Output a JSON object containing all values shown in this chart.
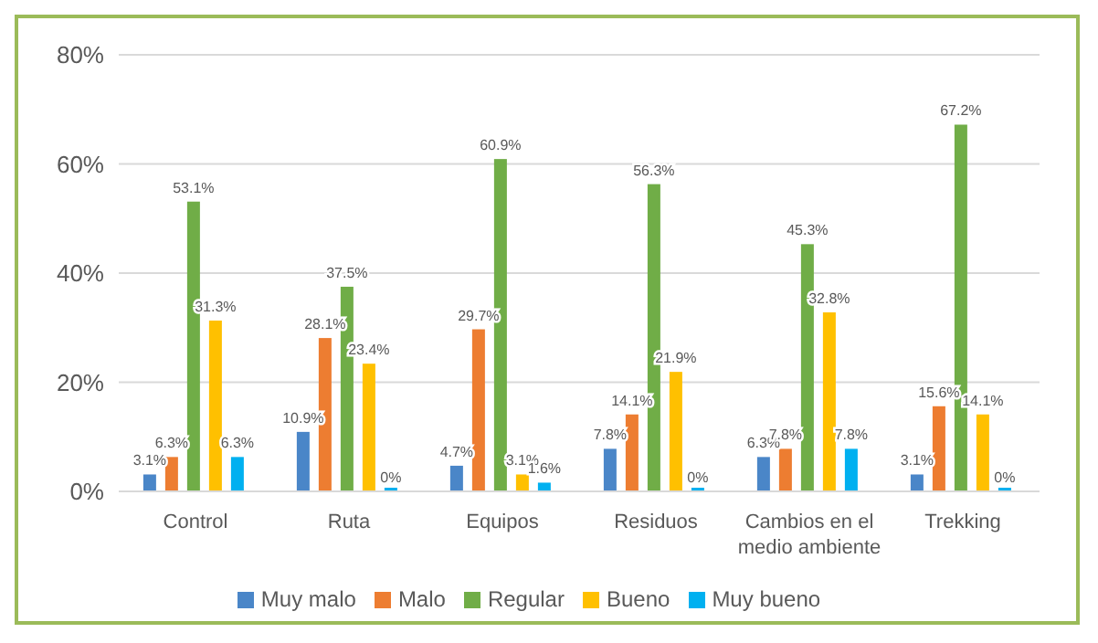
{
  "chart_data": {
    "type": "bar",
    "categories": [
      "Control",
      "Ruta",
      "Equipos",
      "Residuos",
      "Cambios en el medio ambiente",
      "Trekking"
    ],
    "series": [
      {
        "name": "Muy malo",
        "color": "#4a86c8",
        "values": [
          3.1,
          10.9,
          4.7,
          7.8,
          6.3,
          3.1
        ],
        "value_labels": [
          "3.1%",
          "10.9%",
          "4.7%",
          "7.8%",
          "6.3%",
          "3.1%"
        ]
      },
      {
        "name": "Malo",
        "color": "#ed7d31",
        "values": [
          6.3,
          28.1,
          29.7,
          14.1,
          7.8,
          15.6
        ],
        "value_labels": [
          "6.3%",
          "28.1%",
          "29.7%",
          "14.1%",
          "7.8%",
          "15.6%"
        ]
      },
      {
        "name": "Regular",
        "color": "#70ad47",
        "values": [
          53.1,
          37.5,
          60.9,
          56.3,
          45.3,
          67.2
        ],
        "value_labels": [
          "53.1%",
          "37.5%",
          "60.9%",
          "56.3%",
          "45.3%",
          "67.2%"
        ]
      },
      {
        "name": "Bueno",
        "color": "#ffc000",
        "values": [
          31.3,
          23.4,
          3.1,
          21.9,
          32.8,
          14.1
        ],
        "value_labels": [
          "31.3%",
          "23.4%",
          "3.1%",
          "21.9%",
          "32.8%",
          "14.1%"
        ]
      },
      {
        "name": "Muy bueno",
        "color": "#00b0f0",
        "values": [
          6.3,
          0,
          1.6,
          0,
          7.8,
          0
        ],
        "value_labels": [
          "6.3%",
          "0%",
          "1.6%",
          "0%",
          "7.8%",
          "0%"
        ]
      }
    ],
    "ylim": [
      0,
      80
    ],
    "yticks": [
      {
        "value": 0,
        "label": "0%"
      },
      {
        "value": 20,
        "label": "20%"
      },
      {
        "value": 40,
        "label": "40%"
      },
      {
        "value": 60,
        "label": "60%"
      },
      {
        "value": 80,
        "label": "80%"
      }
    ],
    "grid": "y",
    "legend": "bottom"
  }
}
